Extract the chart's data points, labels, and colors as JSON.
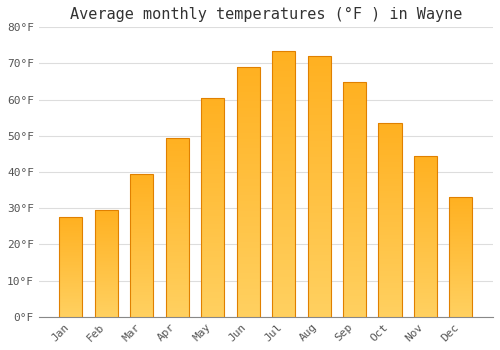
{
  "months": [
    "Jan",
    "Feb",
    "Mar",
    "Apr",
    "May",
    "Jun",
    "Jul",
    "Aug",
    "Sep",
    "Oct",
    "Nov",
    "Dec"
  ],
  "values": [
    27.5,
    29.5,
    39.5,
    49.5,
    60.5,
    69.0,
    73.5,
    72.0,
    65.0,
    53.5,
    44.5,
    33.0
  ],
  "bar_color_bottom": "#FFD060",
  "bar_color_top": "#FFB020",
  "bar_edge_color": "#E08000",
  "title": "Average monthly temperatures (°F ) in Wayne",
  "ylim": [
    0,
    80
  ],
  "yticks": [
    0,
    10,
    20,
    30,
    40,
    50,
    60,
    70,
    80
  ],
  "ytick_labels": [
    "0°F",
    "10°F",
    "20°F",
    "30°F",
    "40°F",
    "50°F",
    "60°F",
    "70°F",
    "80°F"
  ],
  "background_color": "#FFFFFF",
  "grid_color": "#DDDDDD",
  "title_fontsize": 11,
  "tick_fontsize": 8,
  "font_family": "monospace"
}
